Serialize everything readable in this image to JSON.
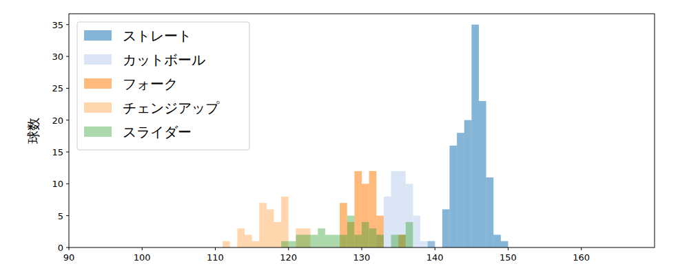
{
  "chart_data": {
    "type": "histogram",
    "y_label": "球数",
    "bins": [
      110,
      111,
      112,
      113,
      114,
      115,
      116,
      117,
      118,
      119,
      120,
      121,
      122,
      123,
      124,
      125,
      126,
      127,
      128,
      129,
      130,
      131,
      132,
      133,
      134,
      135,
      136,
      137,
      138,
      139,
      140,
      141,
      142,
      143,
      144,
      145,
      146,
      147,
      148,
      149,
      150,
      151
    ],
    "series": [
      {
        "name": "ストレート",
        "color": "#1f77b4",
        "values": [
          0,
          0,
          0,
          0,
          0,
          0,
          0,
          0,
          0,
          0,
          0,
          0,
          0,
          0,
          0,
          0,
          0,
          0,
          0,
          0,
          0,
          0,
          0,
          0,
          0,
          0,
          0,
          0,
          0,
          1,
          0,
          6,
          16,
          18,
          20,
          35,
          23,
          11,
          2,
          1,
          0
        ]
      },
      {
        "name": "カットボール",
        "color": "#aec7e8",
        "values": [
          0,
          0,
          0,
          0,
          0,
          0,
          0,
          0,
          0,
          0,
          0,
          0,
          0,
          0,
          0,
          0,
          0,
          0,
          0,
          0,
          0,
          0,
          2,
          8,
          12,
          12,
          10,
          5,
          1,
          1,
          0,
          0,
          0,
          0,
          0,
          0,
          0,
          0,
          0,
          0,
          0
        ]
      },
      {
        "name": "フォーク",
        "color": "#ff7f0e",
        "values": [
          0,
          0,
          0,
          0,
          0,
          0,
          0,
          0,
          0,
          0,
          0,
          0,
          0,
          0,
          0,
          0,
          0,
          7,
          4,
          12,
          10,
          12,
          5,
          0,
          0,
          2,
          0,
          0,
          0,
          0,
          0,
          0,
          0,
          0,
          0,
          0,
          0,
          0,
          0,
          0,
          0
        ]
      },
      {
        "name": "チェンジアップ",
        "color": "#ffbb78",
        "values": [
          0,
          1,
          0,
          3,
          2,
          1,
          7,
          6,
          4,
          8,
          0,
          3,
          3,
          0,
          0,
          0,
          0,
          0,
          0,
          0,
          0,
          0,
          0,
          0,
          0,
          0,
          0,
          0,
          0,
          0,
          0,
          0,
          0,
          0,
          0,
          0,
          0,
          0,
          0,
          0,
          0
        ]
      },
      {
        "name": "スライダー",
        "color": "#2ca02c",
        "values": [
          0,
          0,
          0,
          0,
          0,
          0,
          0,
          0,
          0,
          1,
          1,
          2,
          2,
          2,
          3,
          2,
          2,
          2,
          5,
          2,
          4,
          3,
          2,
          0,
          2,
          2,
          4,
          0,
          0,
          0,
          0,
          0,
          0,
          0,
          0,
          0,
          0,
          0,
          0,
          0,
          0
        ]
      }
    ],
    "xlim": [
      90,
      170
    ],
    "ylim": [
      0,
      36.7
    ],
    "xticks": [
      90,
      100,
      110,
      120,
      130,
      140,
      150,
      160
    ],
    "yticks": [
      0,
      5,
      10,
      15,
      20,
      25,
      30,
      35
    ],
    "legend": "upper left"
  }
}
